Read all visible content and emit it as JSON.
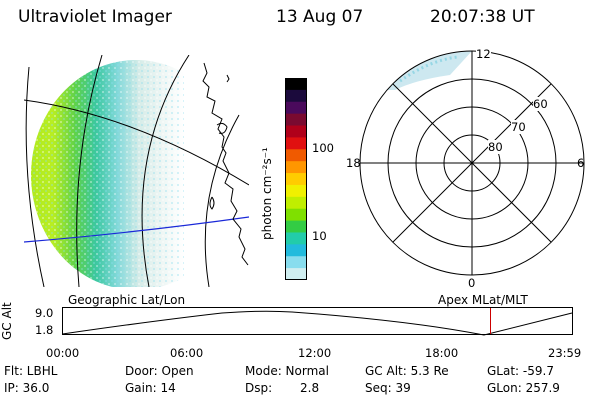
{
  "header": {
    "instrument": "Ultraviolet Imager",
    "date": "13 Aug 07",
    "time": "20:07:38 UT"
  },
  "colorbar": {
    "label": "photon cm⁻²s⁻¹",
    "ticks": [
      "100",
      "10"
    ],
    "colors": [
      "#000000",
      "#1b0a3c",
      "#4a0a5c",
      "#7a0a30",
      "#b0001a",
      "#e01010",
      "#f05a00",
      "#ff9600",
      "#ffcc00",
      "#f0f000",
      "#c0ee00",
      "#7fe000",
      "#33cc44",
      "#22ccaa",
      "#22bbdd",
      "#88ddee",
      "#d0eef0"
    ]
  },
  "map_panel": {
    "title": "Geographic Lat/Lon"
  },
  "polar_panel": {
    "title": "Apex  MLat/MLT",
    "mlt_labels": [
      "12",
      "18",
      "6",
      "0"
    ],
    "mlat_labels": [
      "60",
      "70",
      "80"
    ]
  },
  "altitude_plot": {
    "ylabel": "GC Alt",
    "yticks": [
      "9.0",
      "1.8"
    ],
    "xticks": [
      "00:00",
      "06:00",
      "12:00",
      "18:00",
      "23:59"
    ],
    "current_time_hours": 20.127,
    "marker_color": "#cc0000"
  },
  "footer": {
    "flt": "Flt: LBHL",
    "ip": "IP: 36.0",
    "door": "Door: Open",
    "gain": "Gain: 14",
    "mode": "Mode: Normal",
    "dsp_label": "Dsp:",
    "dsp_value": "2.8",
    "gc_alt": "GC Alt: 5.3 Re",
    "seq": "Seq: 39",
    "glat": "GLat: -59.7",
    "glon": "GLon: 257.9"
  }
}
